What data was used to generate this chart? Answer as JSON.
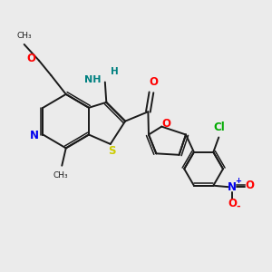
{
  "background_color": "#ebebeb",
  "bond_color": "#1a1a1a",
  "figsize": [
    3.0,
    3.0
  ],
  "dpi": 100,
  "N_blue": "#0000ee",
  "S_yellow": "#cccc00",
  "O_red": "#ff0000",
  "Cl_green": "#00aa00",
  "N_amino_teal": "#008080",
  "xlim": [
    0,
    10
  ],
  "ylim": [
    0,
    10
  ]
}
